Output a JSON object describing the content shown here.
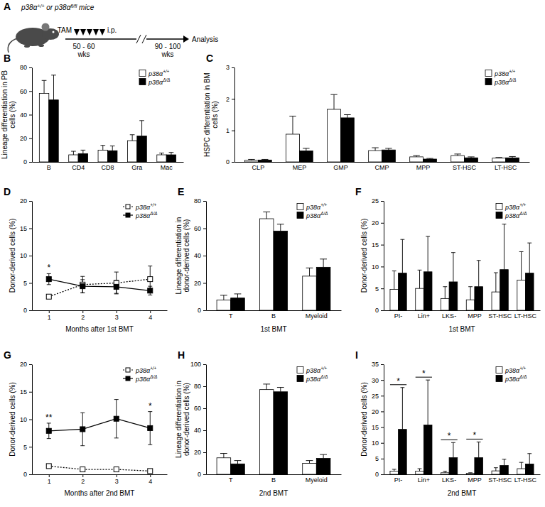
{
  "schematic": {
    "label": "A",
    "mice": "p38α+/+ or p38αfl/fl mice",
    "treatment": "TAM",
    "route": "i.p.",
    "start_age": "50 - 60",
    "start_unit": "wks",
    "end_age": "90 - 100",
    "end_unit": "wks",
    "endpoint": "Analysis"
  },
  "chart_data": [
    {
      "type": "bar",
      "title": "B",
      "ylabel": "Lineage differentiation in PB cells (%)",
      "categories": [
        "B",
        "CD4",
        "CD8",
        "Gra",
        "Mac"
      ],
      "series": [
        {
          "name": "p38α+/+",
          "color": "#ffffff",
          "values": [
            58,
            6,
            10,
            18,
            6
          ],
          "errors": [
            11,
            3,
            4,
            5,
            1.5
          ]
        },
        {
          "name": "p38αΔ/Δ",
          "color": "#000000",
          "values": [
            52.5,
            7,
            9.5,
            22,
            6
          ],
          "errors": [
            21,
            3,
            4,
            13,
            2
          ]
        }
      ],
      "ylim": [
        0,
        80
      ],
      "yticks": [
        0,
        20,
        40,
        60,
        80
      ],
      "legend": "top-right",
      "grid": false
    },
    {
      "type": "bar",
      "title": "C",
      "ylabel": "HSPC differentiation in BM cells (%)",
      "categories": [
        "CLP",
        "MEP",
        "GMP",
        "CMP",
        "MPP",
        "ST-HSC",
        "LT-HSC"
      ],
      "series": [
        {
          "name": "p38α+/+",
          "color": "#ffffff",
          "values": [
            0.05,
            0.88,
            1.67,
            0.36,
            0.16,
            0.2,
            0.12
          ],
          "errors": [
            0.03,
            0.57,
            0.47,
            0.09,
            0.04,
            0.05,
            0.02
          ]
        },
        {
          "name": "p38αΔ/Δ",
          "color": "#000000",
          "values": [
            0.06,
            0.35,
            1.4,
            0.38,
            0.09,
            0.13,
            0.13
          ],
          "errors": [
            0.02,
            0.08,
            0.1,
            0.05,
            0.02,
            0.03,
            0.04
          ]
        }
      ],
      "ylim": [
        0,
        3
      ],
      "yticks": [
        0,
        1,
        2,
        3
      ],
      "legend": "top-right",
      "grid": false
    },
    {
      "type": "line",
      "title": "D",
      "xlabel": "Months after 1st BMT",
      "ylabel": "Donor-derived cells (%)",
      "x": [
        1,
        2,
        3,
        4
      ],
      "xlim": [
        0.5,
        4.5
      ],
      "xticks": [
        1,
        2,
        3,
        4
      ],
      "series": [
        {
          "name": "p38α+/+",
          "color": "#ffffff",
          "marker": "square",
          "line_style": "dotted",
          "values": [
            2.5,
            4.7,
            5,
            5.7
          ],
          "errors": [
            0.3,
            1.5,
            2,
            2.4
          ]
        },
        {
          "name": "p38αΔ/Δ",
          "color": "#000000",
          "marker": "square",
          "line_style": "solid",
          "values": [
            5.7,
            4.4,
            4.3,
            3.6
          ],
          "errors": [
            1,
            1.2,
            1.2,
            0.8
          ]
        }
      ],
      "ylim": [
        0,
        20
      ],
      "yticks": [
        0,
        5,
        10,
        15,
        20
      ],
      "annotations": [
        {
          "text": "*",
          "x": 1
        }
      ],
      "legend": "top-right",
      "grid": false
    },
    {
      "type": "bar",
      "title": "E",
      "xlabel": "1st BMT",
      "ylabel": "Lineage differentiation in donor-derived cells (%)",
      "categories": [
        "T",
        "B",
        "Myeloid"
      ],
      "series": [
        {
          "name": "p38α+/+",
          "color": "#ffffff",
          "values": [
            7.5,
            67,
            25
          ],
          "errors": [
            3.5,
            5,
            6
          ]
        },
        {
          "name": "p38αΔ/Δ",
          "color": "#000000",
          "values": [
            9,
            58,
            31.5
          ],
          "errors": [
            3,
            5,
            6
          ]
        }
      ],
      "ylim": [
        0,
        80
      ],
      "yticks": [
        0,
        20,
        40,
        60,
        80
      ],
      "legend": "top-right",
      "grid": false
    },
    {
      "type": "bar",
      "title": "F",
      "xlabel": "1st BMT",
      "ylabel": "Donor-derived cells (%)",
      "categories": [
        "PI-",
        "Lin+",
        "LKS-",
        "MPP",
        "ST-HSC",
        "LT-HSC"
      ],
      "series": [
        {
          "name": "p38α+/+",
          "color": "#ffffff",
          "values": [
            4.8,
            5,
            2.7,
            2.4,
            4.2,
            6.9
          ],
          "errors": [
            4.2,
            4.2,
            2.7,
            3,
            4.4,
            6.5
          ]
        },
        {
          "name": "p38αΔ/Δ",
          "color": "#000000",
          "values": [
            8.5,
            8.8,
            6.5,
            5.4,
            9.3,
            8.5
          ],
          "errors": [
            7.7,
            8.1,
            6.7,
            6,
            10.4,
            6.9
          ]
        }
      ],
      "ylim": [
        0,
        25
      ],
      "yticks": [
        0,
        5,
        10,
        15,
        20,
        25
      ],
      "legend": "top-right",
      "grid": false
    },
    {
      "type": "line",
      "title": "G",
      "xlabel": "Months after 2nd BMT",
      "ylabel": "Donor-derived cells (%)",
      "x": [
        1,
        2,
        3,
        4
      ],
      "xlim": [
        0.5,
        4.5
      ],
      "xticks": [
        1,
        2,
        3,
        4
      ],
      "series": [
        {
          "name": "p38α+/+",
          "color": "#ffffff",
          "marker": "square",
          "line_style": "dotted",
          "values": [
            1.5,
            0.9,
            0.9,
            0.6
          ],
          "errors": [
            0.3,
            0.2,
            0.2,
            0.2
          ]
        },
        {
          "name": "p38αΔ/Δ",
          "color": "#000000",
          "marker": "square",
          "line_style": "solid",
          "values": [
            7.9,
            8.2,
            10.1,
            8.4
          ],
          "errors": [
            1.4,
            3,
            3.5,
            3
          ]
        }
      ],
      "ylim": [
        0,
        20
      ],
      "yticks": [
        0,
        5,
        10,
        15,
        20
      ],
      "annotations": [
        {
          "text": "**",
          "x": 1
        },
        {
          "text": "*",
          "x": 4
        }
      ],
      "legend": "top-right",
      "grid": false
    },
    {
      "type": "bar",
      "title": "H",
      "xlabel": "2nd BMT",
      "ylabel": "Lineage differentiation in donor-derived cells (%)",
      "categories": [
        "T",
        "B",
        "Myeloid"
      ],
      "series": [
        {
          "name": "p38α+/+",
          "color": "#ffffff",
          "values": [
            15,
            77,
            10
          ],
          "errors": [
            4,
            5,
            2.5
          ]
        },
        {
          "name": "p38αΔ/Δ",
          "color": "#000000",
          "values": [
            9.5,
            75,
            14.5
          ],
          "errors": [
            3,
            4,
            3.5
          ]
        }
      ],
      "ylim": [
        0,
        100
      ],
      "yticks": [
        0,
        20,
        40,
        60,
        80,
        100
      ],
      "legend": "top-right",
      "grid": false
    },
    {
      "type": "bar",
      "title": "I",
      "xlabel": "2nd BMT",
      "ylabel": "Donor-derived cells (%)",
      "categories": [
        "PI-",
        "Lin+",
        "LKS-",
        "MPP",
        "ST-HSC",
        "LT-HSC"
      ],
      "series": [
        {
          "name": "p38α+/+",
          "color": "#ffffff",
          "values": [
            1,
            1,
            0.5,
            0.3,
            1.1,
            1.8
          ],
          "errors": [
            0.6,
            0.8,
            0.5,
            0.2,
            1,
            2
          ]
        },
        {
          "name": "p38αΔ/Δ",
          "color": "#000000",
          "values": [
            14.3,
            15.7,
            5.3,
            5.3,
            2.8,
            3.3
          ],
          "errors": [
            13.3,
            14.3,
            4.8,
            5,
            2,
            3.3
          ]
        }
      ],
      "ylim": [
        0,
        35
      ],
      "yticks": [
        0,
        5,
        10,
        15,
        20,
        25,
        30,
        35
      ],
      "annotations": [
        {
          "text": "*",
          "category": "PI-"
        },
        {
          "text": "*",
          "category": "Lin+"
        },
        {
          "text": "*",
          "category": "LKS-"
        },
        {
          "text": "*",
          "category": "MPP"
        }
      ],
      "legend": "top-right",
      "grid": false
    }
  ]
}
